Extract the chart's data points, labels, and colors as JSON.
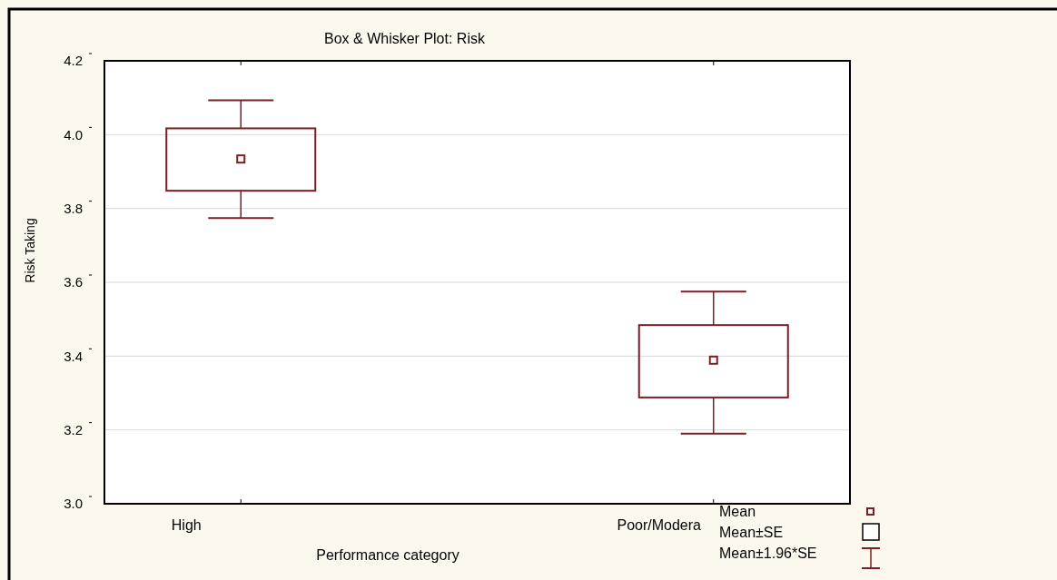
{
  "chart_data": {
    "type": "box",
    "title": "Box & Whisker Plot: Risk",
    "xlabel": "Performance category",
    "ylabel": "Risk Taking",
    "categories": [
      "High",
      "Poor/Modera"
    ],
    "boxes": [
      {
        "low": 3.774,
        "q1": 3.848,
        "median": 3.934,
        "q3": 4.017,
        "high": 4.093
      },
      {
        "low": 3.19,
        "q1": 3.288,
        "median": 3.389,
        "q3": 3.484,
        "high": 3.575
      }
    ],
    "color": "#7b1f24",
    "ylim": [
      3.0,
      4.2
    ],
    "yticks": [
      {
        "value": 3.0,
        "label": "3.0"
      },
      {
        "value": 3.2,
        "label": "3.2"
      },
      {
        "value": 3.4,
        "label": "3.4"
      },
      {
        "value": 3.6,
        "label": "3.6"
      },
      {
        "value": 3.8,
        "label": "3.8"
      },
      {
        "value": 4.0,
        "label": "4.0"
      },
      {
        "value": 4.2,
        "label": "4.2"
      }
    ],
    "grid": "y",
    "annotations": [
      "Mean",
      "Mean±SE",
      "Mean±1.96*SE"
    ]
  }
}
